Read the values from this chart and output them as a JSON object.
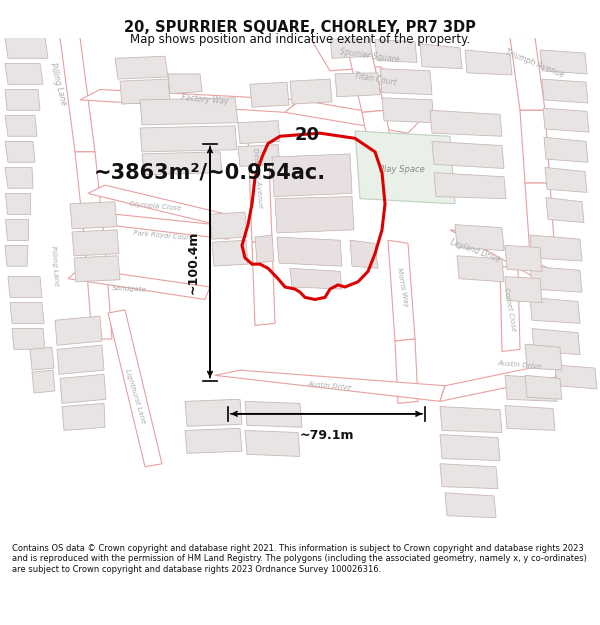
{
  "title_line1": "20, SPURRIER SQUARE, CHORLEY, PR7 3DP",
  "title_line2": "Map shows position and indicative extent of the property.",
  "area_text": "~3863m²/~0.954ac.",
  "number_label": "20",
  "dim_height": "~100.4m",
  "dim_width": "~79.1m",
  "footer_text": "Contains OS data © Crown copyright and database right 2021. This information is subject to Crown copyright and database rights 2023 and is reproduced with the permission of HM Land Registry. The polygons (including the associated geometry, namely x, y co-ordinates) are subject to Crown copyright and database rights 2023 Ordnance Survey 100026316.",
  "map_bg": "#ffffff",
  "road_outline": "#e8a0a0",
  "road_fill": "#ffffff",
  "building_fill": "#e8e4e4",
  "building_edge": "#c8b8b8",
  "highlight_color": "#dd0000",
  "highlight_fill": "none",
  "green_fill": "#e8f0e8",
  "green_edge": "#c0d0c0",
  "text_road": "#aaaaaa",
  "text_black": "#111111"
}
